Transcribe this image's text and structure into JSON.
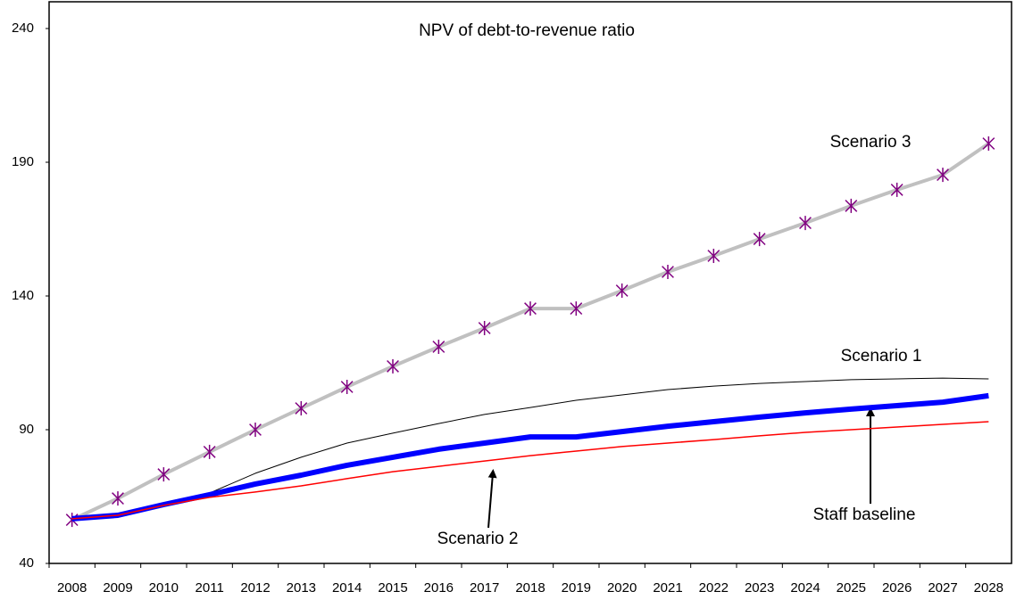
{
  "chart_data": {
    "type": "line",
    "title": "NPV of debt-to-revenue ratio",
    "categories": [
      "2008",
      "2009",
      "2010",
      "2011",
      "2012",
      "2013",
      "2014",
      "2015",
      "2016",
      "2017",
      "2018",
      "2019",
      "2020",
      "2021",
      "2022",
      "2023",
      "2024",
      "2025",
      "2026",
      "2027",
      "2028"
    ],
    "ylim": [
      40,
      250
    ],
    "yticks": [
      40,
      90,
      140,
      190,
      240
    ],
    "grid": false,
    "series": [
      {
        "name": "Scenario 3",
        "color": "#c0c0c0",
        "line_width": 4,
        "marker": "asterisk",
        "marker_color": "#800080",
        "values": [
          56.3,
          64.3,
          73.3,
          81.7,
          90,
          98,
          106,
          113.7,
          121,
          128,
          135.3,
          135.3,
          142,
          149,
          155,
          161.3,
          167.3,
          173.7,
          179.7,
          185.3,
          197
        ]
      },
      {
        "name": "Scenario 1",
        "color": "#000000",
        "line_width": 1,
        "values": [
          56.3,
          57.3,
          61.7,
          66.3,
          73.7,
          79.7,
          85,
          88.7,
          92.3,
          95.7,
          98.3,
          101,
          103,
          105,
          106.3,
          107.3,
          108,
          108.7,
          109,
          109.3,
          109
        ]
      },
      {
        "name": "Staff baseline",
        "color": "#0000ff",
        "line_width": 6,
        "values": [
          56.7,
          58,
          62,
          65.7,
          69.7,
          73,
          76.7,
          79.7,
          82.7,
          85,
          87.3,
          87.3,
          89.3,
          91.3,
          93,
          94.7,
          96.3,
          97.7,
          99,
          100.3,
          102.7
        ]
      },
      {
        "name": "Scenario 2",
        "color": "#ff0000",
        "line_width": 1.5,
        "values": [
          56.7,
          58,
          61.7,
          64.7,
          66.7,
          69,
          71.7,
          74.3,
          76.3,
          78.3,
          80.3,
          82,
          83.7,
          85,
          86.3,
          87.7,
          89,
          90,
          91,
          92,
          93
        ]
      }
    ]
  }
}
